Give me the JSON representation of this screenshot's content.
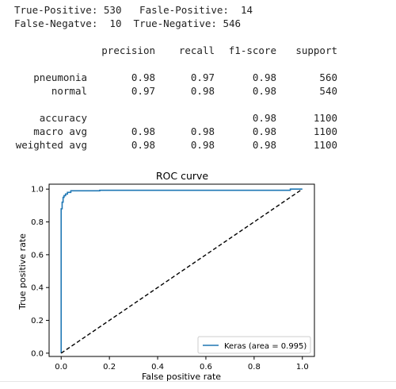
{
  "stats": {
    "tp_label": "True-Positive:",
    "tp_value": "530",
    "fp_label": "Fasle-Positive:",
    "fp_value": "14",
    "fn_label": "False-Negatve:",
    "fn_value": "10",
    "tn_label": "True-Negative:",
    "tn_value": "546"
  },
  "report": {
    "headers": [
      "precision",
      "recall",
      "f1-score",
      "support"
    ],
    "rows": [
      {
        "label": "pneumonia",
        "precision": "0.98",
        "recall": "0.97",
        "f1": "0.98",
        "support": "560"
      },
      {
        "label": "normal",
        "precision": "0.97",
        "recall": "0.98",
        "f1": "0.98",
        "support": "540"
      },
      {
        "label": "accuracy",
        "precision": "",
        "recall": "",
        "f1": "0.98",
        "support": "1100"
      },
      {
        "label": "macro avg",
        "precision": "0.98",
        "recall": "0.98",
        "f1": "0.98",
        "support": "1100"
      },
      {
        "label": "weighted avg",
        "precision": "0.98",
        "recall": "0.98",
        "f1": "0.98",
        "support": "1100"
      }
    ]
  },
  "chart_data": {
    "type": "line",
    "title": "ROC curve",
    "xlabel": "False positive rate",
    "ylabel": "True positive rate",
    "xlim": [
      -0.05,
      1.05
    ],
    "ylim": [
      -0.02,
      1.03
    ],
    "xticks": [
      "0.0",
      "0.2",
      "0.4",
      "0.6",
      "0.8",
      "1.0"
    ],
    "yticks": [
      "0.0",
      "0.2",
      "0.4",
      "0.6",
      "0.8",
      "1.0"
    ],
    "grid": false,
    "legend_position": "lower-right",
    "series": [
      {
        "name": "Keras (area = 0.995)",
        "color": "#1f77b4",
        "style": "solid",
        "x": [
          0.0,
          0.0,
          0.004,
          0.004,
          0.008,
          0.008,
          0.012,
          0.012,
          0.018,
          0.018,
          0.026,
          0.026,
          0.04,
          0.04,
          0.16,
          0.16,
          0.95,
          0.95,
          1.0
        ],
        "y": [
          0.0,
          0.88,
          0.88,
          0.92,
          0.92,
          0.95,
          0.95,
          0.96,
          0.96,
          0.97,
          0.97,
          0.98,
          0.98,
          0.99,
          0.99,
          0.993,
          0.993,
          1.0,
          1.0
        ]
      },
      {
        "name": "",
        "color": "#000000",
        "style": "dashed",
        "x": [
          0.0,
          1.0
        ],
        "y": [
          0.0,
          1.0
        ]
      }
    ]
  }
}
